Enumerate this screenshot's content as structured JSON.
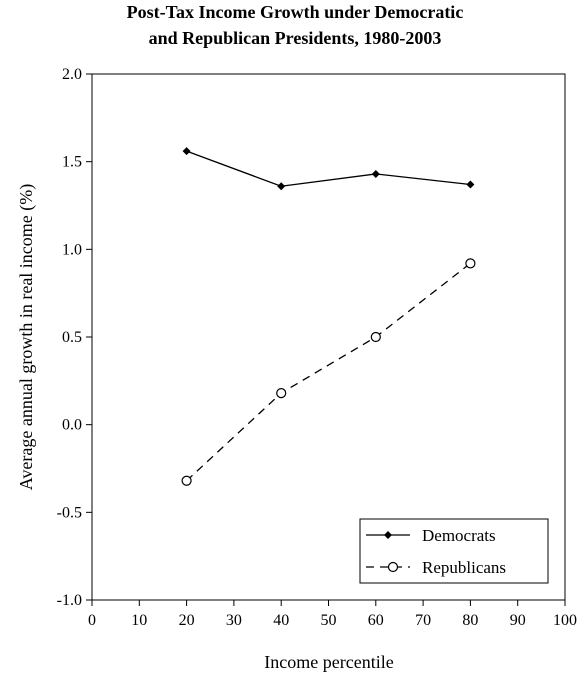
{
  "chart_data": {
    "type": "line",
    "title_lines": [
      "Post-Tax Income Growth under Democratic",
      "and Republican Presidents, 1980-2003"
    ],
    "xlabel": "Income percentile",
    "ylabel": "Average annual growth in real income (%)",
    "xlim": [
      0,
      100
    ],
    "ylim": [
      -1.0,
      2.0
    ],
    "x_ticks": [
      "0",
      "10",
      "20",
      "30",
      "40",
      "50",
      "60",
      "70",
      "80",
      "90",
      "100"
    ],
    "y_ticks": [
      "-1.0",
      "-0.5",
      "0.0",
      "0.5",
      "1.0",
      "1.5",
      "2.0"
    ],
    "grid": false,
    "legend_position": "bottom-right",
    "series": [
      {
        "name": "Democrats",
        "style": "solid",
        "marker": "filled-diamond",
        "color": "#000000",
        "x": [
          20,
          40,
          60,
          80
        ],
        "y": [
          1.56,
          1.36,
          1.43,
          1.37
        ]
      },
      {
        "name": "Republicans",
        "style": "dashed",
        "marker": "open-circle",
        "color": "#000000",
        "x": [
          20,
          40,
          60,
          80
        ],
        "y": [
          -0.32,
          0.18,
          0.5,
          0.92
        ]
      }
    ]
  }
}
